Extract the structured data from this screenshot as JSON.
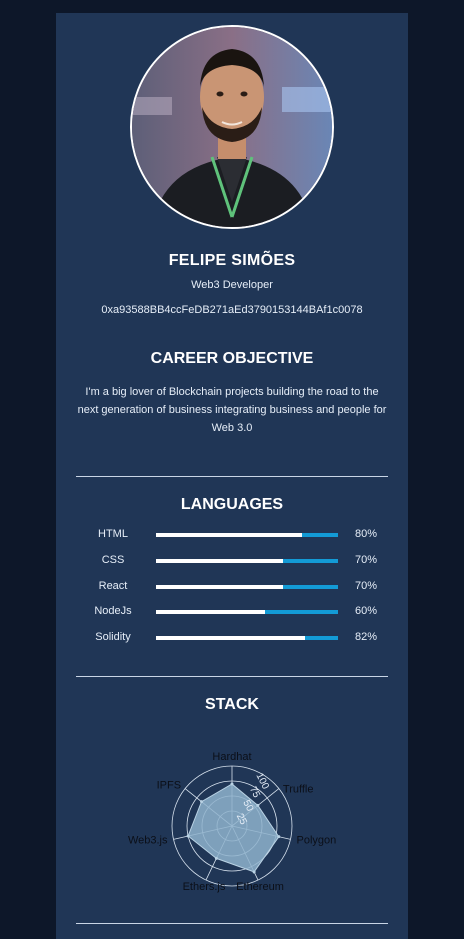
{
  "profile": {
    "name": "FELIPE SIMÕES",
    "role": "Web3 Developer",
    "wallet": "0xa93588BB4ccFeDB271aEd3790153144BAf1c0078"
  },
  "objective": {
    "title": "CAREER OBJECTIVE",
    "text": "I'm a big lover of Blockchain projects building the road to the next generation of business integrating business and people for Web 3.0"
  },
  "languages": {
    "title": "LANGUAGES",
    "items": [
      {
        "name": "HTML",
        "percent": 80,
        "label": "80%"
      },
      {
        "name": "CSS",
        "percent": 70,
        "label": "70%"
      },
      {
        "name": "React",
        "percent": 70,
        "label": "70%"
      },
      {
        "name": "NodeJs",
        "percent": 60,
        "label": "60%"
      },
      {
        "name": "Solidity",
        "percent": 82,
        "label": "82%"
      }
    ]
  },
  "stack": {
    "title": "STACK",
    "chart_data": {
      "type": "radar",
      "categories": [
        "Hardhat",
        "Truffle",
        "Polygon",
        "Ethereum",
        "Ethers.js",
        "Web3.js",
        "IPFS"
      ],
      "values": [
        70,
        55,
        80,
        85,
        60,
        75,
        65
      ],
      "ticks": [
        "25",
        "50",
        "75",
        "100"
      ],
      "range": [
        0,
        100
      ]
    }
  },
  "colors": {
    "background": "#0d1729",
    "card": "#203656",
    "bar_track": "#139bd6",
    "bar_fill": "#ffffff",
    "radar_fill": "#8fb3cc"
  }
}
